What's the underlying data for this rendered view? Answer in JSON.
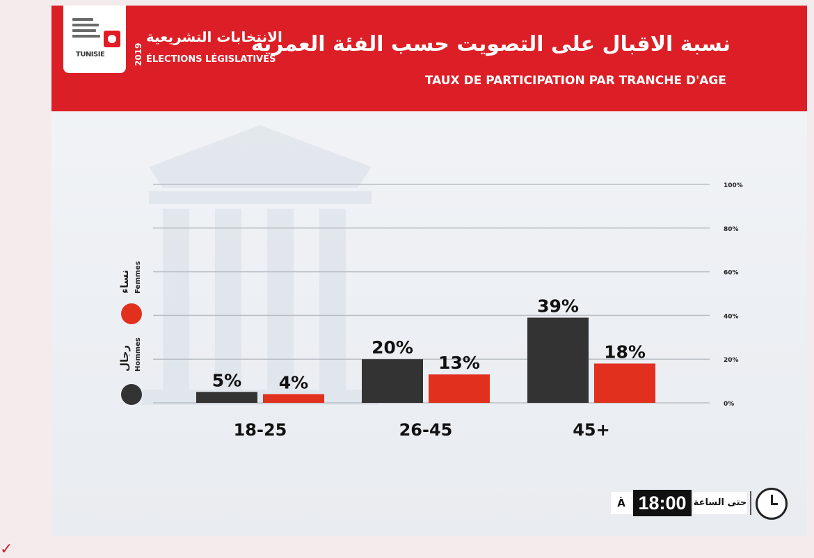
{
  "header": {
    "logo_text": "TUNISIE",
    "year": "2019",
    "brand_ar": "الانتخابات التشريعية",
    "brand_fr": "ÉLECTIONS LÉGISLATIVES",
    "title_ar": "نسبة الاقبال على التصويت حسب الفئة العمرية",
    "title_fr": "TAUX DE PARTICIPATION PAR TRANCHE D'AGE"
  },
  "legend": {
    "men_ar": "رجال",
    "men_fr": "Hommes",
    "women_ar": "نساء",
    "women_fr": "Femmes"
  },
  "time": {
    "prefix_fr": "À",
    "clock": "18:00",
    "label_ar": "حتى الساعة"
  },
  "colors": {
    "men": "#333333",
    "women": "#e2301f",
    "header": "#dc1f26"
  },
  "chart_data": {
    "type": "bar",
    "title": "TAUX DE PARTICIPATION PAR TRANCHE D'AGE",
    "categories": [
      "18-25",
      "26-45",
      "45+"
    ],
    "series": [
      {
        "name": "Hommes",
        "values": [
          5,
          20,
          39
        ],
        "labels": [
          "5%",
          "20%",
          "39%"
        ]
      },
      {
        "name": "Femmes",
        "values": [
          4,
          13,
          18
        ],
        "labels": [
          "4%",
          "13%",
          "18%"
        ]
      }
    ],
    "yticks": [
      "0%",
      "20%",
      "40%",
      "60%",
      "80%",
      "100%"
    ],
    "ylim": [
      0,
      100
    ],
    "grid": true,
    "legend_position": "left"
  }
}
